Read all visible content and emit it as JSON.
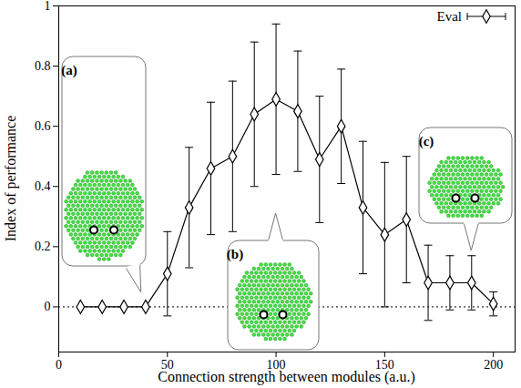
{
  "chart_data": {
    "type": "line",
    "x_label": "Connection strength between modules (a.u.)",
    "y_label": "Index of performance",
    "xlim": [
      0,
      210
    ],
    "ylim": [
      -0.15,
      1
    ],
    "xticks": [
      0,
      50,
      100,
      150,
      200
    ],
    "yticks": [
      0,
      0.2,
      0.4,
      0.6,
      0.8,
      1
    ],
    "legend": "upper right",
    "hline": 0,
    "x": [
      10,
      20,
      30,
      40,
      50,
      60,
      70,
      80,
      90,
      100,
      110,
      120,
      130,
      140,
      150,
      160,
      170,
      180,
      190,
      200
    ],
    "series": [
      {
        "name": "Eval",
        "color": "#000000",
        "marker": "diamond",
        "values": [
          0,
          0,
          0,
          0,
          0.11,
          0.33,
          0.46,
          0.5,
          0.64,
          0.69,
          0.65,
          0.49,
          0.6,
          0.33,
          0.24,
          0.29,
          0.08,
          0.08,
          0.08,
          0.01
        ],
        "errors": [
          0,
          0,
          0,
          0,
          0.14,
          0.2,
          0.22,
          0.25,
          0.24,
          0.25,
          0.2,
          0.21,
          0.19,
          0.22,
          0.24,
          0.21,
          0.125,
          0.09,
          0.09,
          0.04
        ]
      }
    ],
    "annotations": [
      {
        "text": "(a)",
        "x": 40
      },
      {
        "text": "(b)",
        "x": 100
      },
      {
        "text": "(c)",
        "x": 190
      }
    ]
  }
}
